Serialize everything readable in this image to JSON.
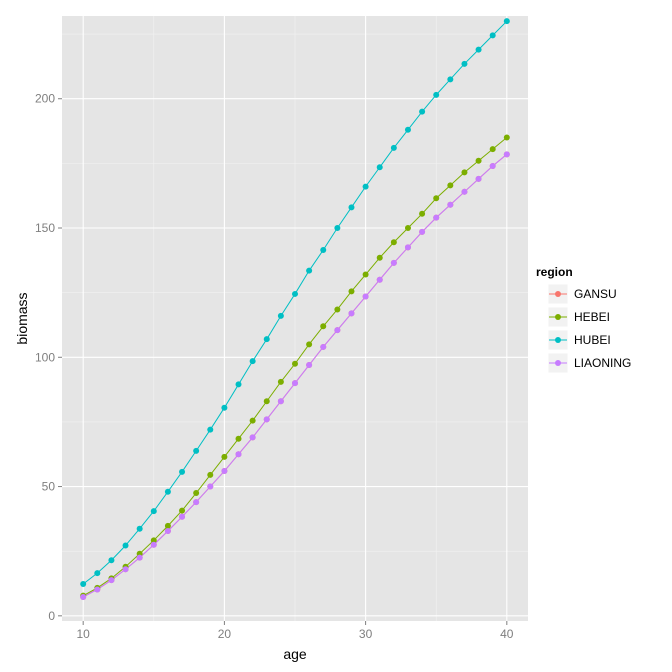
{
  "chart_data": {
    "type": "line",
    "xlabel": "age",
    "ylabel": "biomass",
    "xlim": [
      8.5,
      41.5
    ],
    "ylim": [
      -2,
      232
    ],
    "x_ticks": [
      10,
      20,
      30,
      40
    ],
    "y_ticks": [
      0,
      50,
      100,
      150,
      200
    ],
    "x_tick_labels": [
      "10",
      "20",
      "30",
      "40"
    ],
    "y_tick_labels": [
      "0",
      "50",
      "100",
      "150",
      "200"
    ],
    "grid": true,
    "legend_position": "right",
    "legend_title": "region",
    "x": [
      10,
      11,
      12,
      13,
      14,
      15,
      16,
      17,
      18,
      19,
      20,
      21,
      22,
      23,
      24,
      25,
      26,
      27,
      28,
      29,
      30,
      31,
      32,
      33,
      34,
      35,
      36,
      37,
      38,
      39,
      40
    ],
    "series": [
      {
        "name": "GANSU",
        "color": "#F8766D",
        "values": [
          7.3,
          10.2,
          13.8,
          18,
          22.5,
          27.5,
          32.8,
          38.3,
          44,
          50,
          56,
          62.5,
          69,
          76,
          83,
          90,
          97,
          104,
          110.5,
          117,
          123.5,
          130,
          136.5,
          142.5,
          148.5,
          154,
          159,
          164,
          169,
          174,
          178.5
        ]
      },
      {
        "name": "HEBEI",
        "color": "#7CAE00",
        "values": [
          7.8,
          10.8,
          14.5,
          19,
          24,
          29.2,
          34.8,
          40.7,
          47.5,
          54.5,
          61.5,
          68.5,
          75.5,
          83,
          90.5,
          97.5,
          105,
          112,
          118.5,
          125.5,
          132,
          138.5,
          144.5,
          150,
          155.5,
          161.5,
          166.5,
          171.5,
          176,
          180.5,
          185
        ]
      },
      {
        "name": "HUBEI",
        "color": "#00BFC4",
        "values": [
          12.3,
          16.5,
          21.5,
          27.2,
          33.7,
          40.5,
          48,
          55.7,
          63.8,
          72,
          80.5,
          89.5,
          98.5,
          107,
          116,
          124.5,
          133.5,
          141.5,
          150,
          158,
          166,
          173.5,
          181,
          188,
          195,
          201.5,
          207.5,
          213.5,
          219,
          224.5,
          230
        ]
      },
      {
        "name": "LIAONING",
        "color": "#C77CFF",
        "values": [
          7.3,
          10.2,
          13.8,
          18,
          22.5,
          27.5,
          32.8,
          38.3,
          44,
          50,
          56,
          62.5,
          69,
          76,
          83,
          90,
          97,
          104,
          110.5,
          117,
          123.5,
          130,
          136.5,
          142.5,
          148.5,
          154,
          159,
          164,
          169,
          174,
          178.5
        ]
      }
    ]
  }
}
